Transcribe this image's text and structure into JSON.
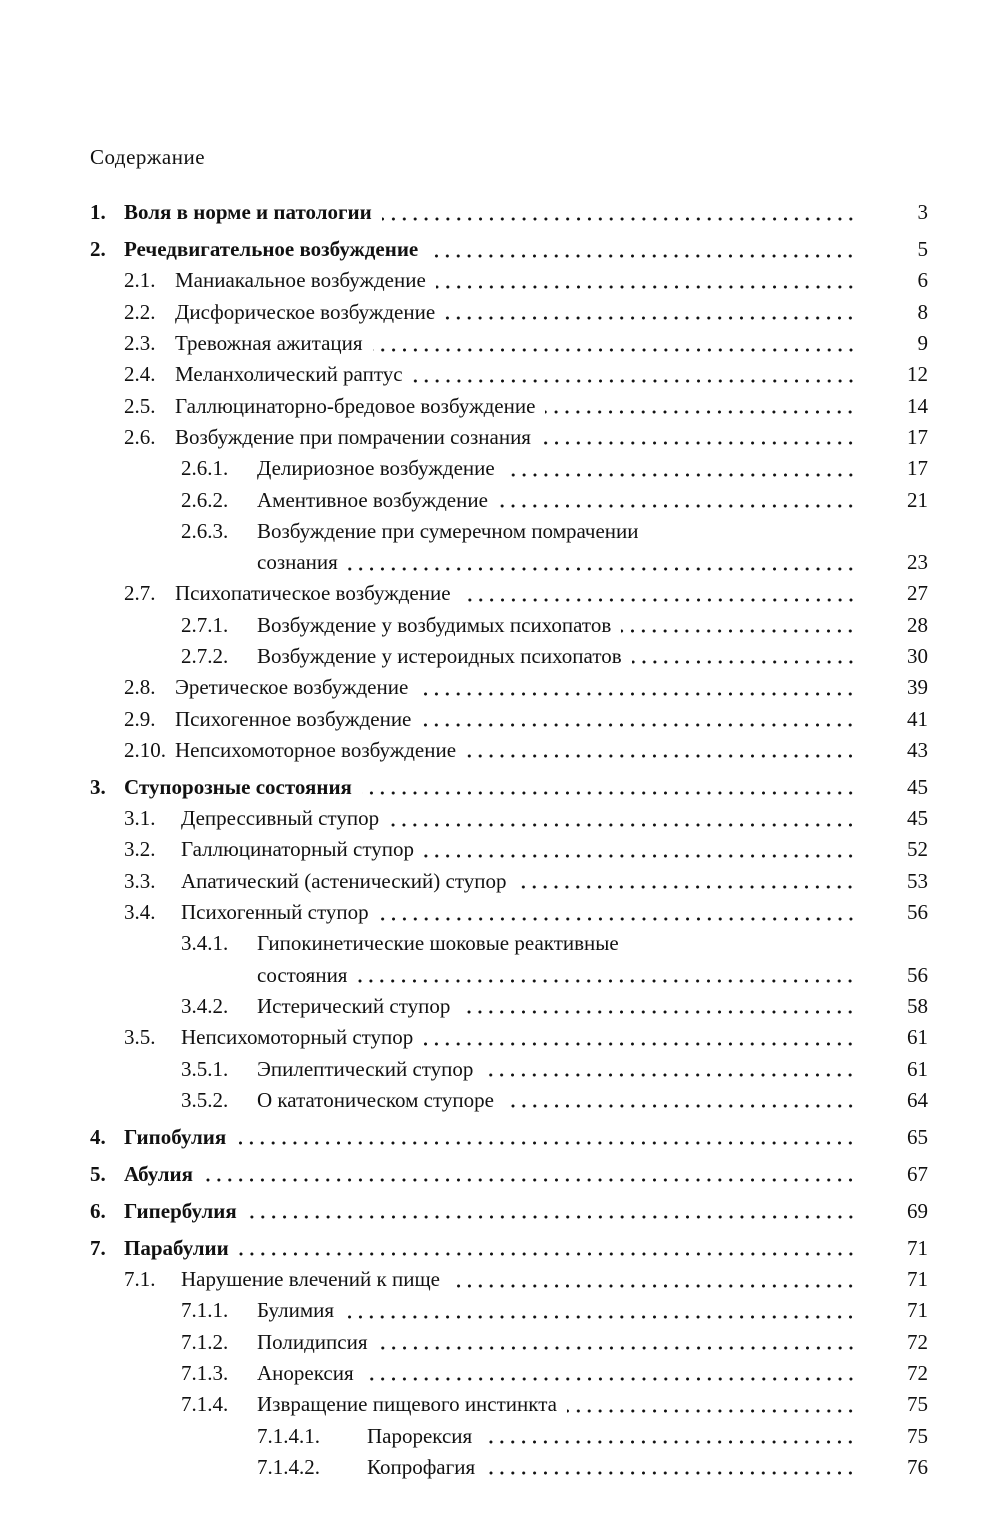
{
  "heading": "Содержание",
  "entries": [
    {
      "num": "1.",
      "title": "Воля в норме и патологии",
      "page": "3",
      "level": 1
    },
    {
      "num": "2.",
      "title": "Речедвигательное возбуждение",
      "page": "5",
      "level": 1
    },
    {
      "num": "2.1.",
      "title": "Маниакальное возбуждение",
      "page": "6",
      "level": 2
    },
    {
      "num": "2.2.",
      "title": "Дисфорическое возбуждение",
      "page": "8",
      "level": 2
    },
    {
      "num": "2.3.",
      "title": "Тревожная ажитация",
      "page": "9",
      "level": 2
    },
    {
      "num": "2.4.",
      "title": "Меланхолический раптус",
      "page": "12",
      "level": 2
    },
    {
      "num": "2.5.",
      "title": "Галлюцинаторно-бредовое возбуждение",
      "page": "14",
      "level": 2
    },
    {
      "num": "2.6.",
      "title": "Возбуждение при помрачении сознания",
      "page": "17",
      "level": 2
    },
    {
      "num": "2.6.1.",
      "title": "Делириозное возбуждение",
      "page": "17",
      "level": 3
    },
    {
      "num": "2.6.2.",
      "title": "Аментивное возбуждение",
      "page": "21",
      "level": 3
    },
    {
      "num": "2.6.3.",
      "title": "Возбуждение при сумеречном помрачении",
      "title_cont": "сознания",
      "page": "23",
      "level": 3
    },
    {
      "num": "2.7.",
      "title": "Психопатическое возбуждение",
      "page": "27",
      "level": 2
    },
    {
      "num": "2.7.1.",
      "title": "Возбуждение у возбудимых психопатов",
      "page": "28",
      "level": 3
    },
    {
      "num": "2.7.2.",
      "title": "Возбуждение у истероидных психопатов",
      "page": "30",
      "level": 3
    },
    {
      "num": "2.8.",
      "title": "Эретическое возбуждение",
      "page": "39",
      "level": 2
    },
    {
      "num": "2.9.",
      "title": "Психогенное возбуждение",
      "page": "41",
      "level": 2
    },
    {
      "num": "2.10.",
      "title": "Непсихомоторное возбуждение",
      "page": "43",
      "level": 2
    },
    {
      "num": "3.",
      "title": "Ступорозные состояния",
      "page": "45",
      "level": 1
    },
    {
      "num": "3.1.",
      "title": "Депрессивный ступор",
      "page": "45",
      "level": 2
    },
    {
      "num": "3.2.",
      "title": "Галлюцинаторный ступор",
      "page": "52",
      "level": 2
    },
    {
      "num": "3.3.",
      "title": "Апатический (астенический) ступор",
      "page": "53",
      "level": 2
    },
    {
      "num": "3.4.",
      "title": "Психогенный ступор",
      "page": "56",
      "level": 2
    },
    {
      "num": "3.4.1.",
      "title": "Гипокинетические шоковые реактивные",
      "title_cont": "состояния",
      "page": "56",
      "level": 3
    },
    {
      "num": "3.4.2.",
      "title": "Истерический ступор",
      "page": "58",
      "level": 3
    },
    {
      "num": "3.5.",
      "title": "Непсихомоторный ступор",
      "page": "61",
      "level": 2
    },
    {
      "num": "3.5.1.",
      "title": "Эпилептический ступор",
      "page": "61",
      "level": 3
    },
    {
      "num": "3.5.2.",
      "title": "О кататоническом ступоре",
      "page": "64",
      "level": 3
    },
    {
      "num": "4.",
      "title": "Гипобулия",
      "page": "65",
      "level": 1
    },
    {
      "num": "5.",
      "title": "Абулия",
      "page": "67",
      "level": 1
    },
    {
      "num": "6.",
      "title": "Гипербулия",
      "page": "69",
      "level": 1
    },
    {
      "num": "7.",
      "title": "Парабулии",
      "page": "71",
      "level": 1
    },
    {
      "num": "7.1.",
      "title": "Нарушение влечений к пище",
      "page": "71",
      "level": 2
    },
    {
      "num": "7.1.1.",
      "title": "Булимия",
      "page": "71",
      "level": 3
    },
    {
      "num": "7.1.2.",
      "title": "Полидипсия",
      "page": "72",
      "level": 3
    },
    {
      "num": "7.1.3.",
      "title": "Анорексия",
      "page": "72",
      "level": 3
    },
    {
      "num": "7.1.4.",
      "title": "Извращение пищевого инстинкта",
      "page": "75",
      "level": 3
    },
    {
      "num": "7.1.4.1.",
      "title": "Парорексия",
      "page": "75",
      "level": 4
    },
    {
      "num": "7.1.4.2.",
      "title": "Копрофагия",
      "page": "76",
      "level": 4
    }
  ]
}
